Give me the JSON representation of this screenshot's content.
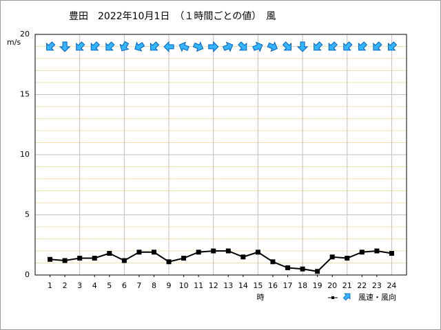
{
  "chart_data": {
    "type": "line",
    "title": "豊田　2022年10月1日　（１時間ごとの値）　風",
    "y_unit": "m/s",
    "x_label": "時",
    "legend_label": "風速・風向",
    "x": [
      1,
      2,
      3,
      4,
      5,
      6,
      7,
      8,
      9,
      10,
      11,
      12,
      13,
      14,
      15,
      16,
      17,
      18,
      19,
      20,
      21,
      22,
      23,
      24
    ],
    "xlim": [
      0,
      25
    ],
    "xticks": [
      1,
      2,
      3,
      4,
      5,
      6,
      7,
      8,
      9,
      10,
      11,
      12,
      13,
      14,
      15,
      16,
      17,
      18,
      19,
      20,
      21,
      22,
      23,
      24
    ],
    "x_grid_every": 3,
    "ylim": [
      0,
      20
    ],
    "yticks": [
      0,
      5,
      10,
      15,
      20
    ],
    "grid": true,
    "series": [
      {
        "name": "風速",
        "color": "#000000",
        "values": [
          1.3,
          1.2,
          1.4,
          1.4,
          1.8,
          1.2,
          1.9,
          1.9,
          1.1,
          1.4,
          1.9,
          2.0,
          2.0,
          1.5,
          1.9,
          1.1,
          0.6,
          0.5,
          0.3,
          1.5,
          1.4,
          1.9,
          2.0,
          1.8
        ]
      }
    ],
    "wind_from_deg": [
      45,
      0,
      45,
      45,
      45,
      30,
      60,
      45,
      90,
      112.5,
      292.5,
      270,
      247.5,
      315,
      247.5,
      292.5,
      315,
      0,
      45,
      45,
      45,
      45,
      45,
      45
    ],
    "arrow_color": "#33b5ff"
  }
}
